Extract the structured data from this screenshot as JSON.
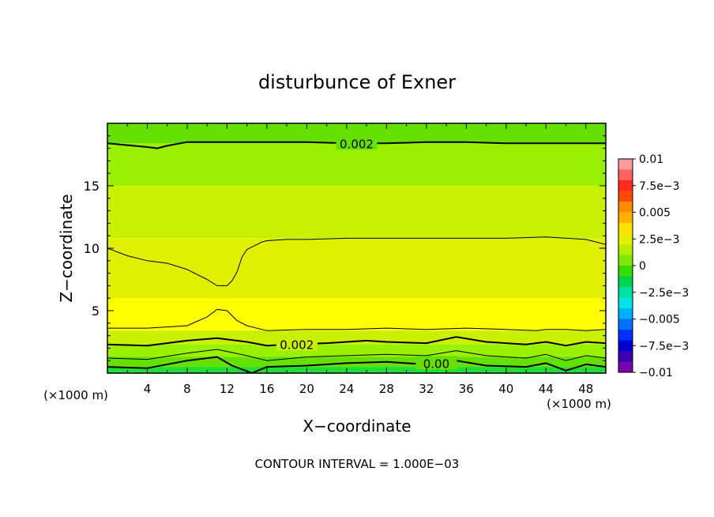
{
  "chart_data": {
    "type": "heatmap",
    "title": "disturbunce of Exner",
    "xlabel": "X−coordinate",
    "ylabel": "Z−coordinate",
    "x_unit": "(×1000 m)",
    "x_unit_right": "(×1000 m)",
    "footer": "CONTOUR INTERVAL = 1.000E−03",
    "xlim": [
      0,
      50
    ],
    "ylim": [
      0,
      20
    ],
    "x_ticks": [
      4,
      8,
      12,
      16,
      20,
      24,
      28,
      32,
      36,
      40,
      44,
      48
    ],
    "x_tick_labels": [
      "4",
      "8",
      "12",
      "16",
      "20",
      "24",
      "28",
      "32",
      "36",
      "40",
      "44",
      "48"
    ],
    "y_ticks": [
      5,
      10,
      15
    ],
    "y_tick_labels": [
      "5",
      "10",
      "15"
    ],
    "colorbar": {
      "range": [
        -0.01,
        0.01
      ],
      "tick_values": [
        0.01,
        0.0075,
        0.005,
        0.0025,
        0,
        -0.0025,
        -0.005,
        -0.0075,
        -0.01
      ],
      "tick_labels": [
        "0.01",
        "7.5e−3",
        "0.005",
        "2.5e−3",
        "0",
        "−2.5e−3",
        "−0.005",
        "−7.5e−3",
        "−0.01"
      ],
      "colors": [
        "#ff9a9a",
        "#ff6060",
        "#ff2b1a",
        "#ff4a00",
        "#ff8c00",
        "#ffb000",
        "#ffe000",
        "#e6f000",
        "#b6f000",
        "#7fe800",
        "#33dd00",
        "#00d44a",
        "#00e0a0",
        "#00e5e5",
        "#00b0ff",
        "#0070ff",
        "#0030ff",
        "#0000d0",
        "#3a00b0",
        "#7a00b0"
      ]
    },
    "bands": [
      {
        "z_from": 18.4,
        "z_to": 20.0,
        "color": "#66e000"
      },
      {
        "z_from": 15.0,
        "z_to": 18.4,
        "color": "#99f000"
      },
      {
        "z_from": 10.8,
        "z_to": 15.0,
        "color": "#c8f000"
      },
      {
        "z_from": 6.0,
        "z_to": 10.8,
        "color": "#e0f000"
      },
      {
        "z_from": 3.4,
        "z_to": 6.0,
        "color": "#ffff00"
      },
      {
        "z_from": 2.3,
        "z_to": 3.4,
        "color": "#c8f000"
      },
      {
        "z_from": 1.3,
        "z_to": 2.3,
        "color": "#99f000"
      },
      {
        "z_from": 0.5,
        "z_to": 1.3,
        "color": "#66e000"
      },
      {
        "z_from": 0.0,
        "z_to": 0.5,
        "color": "#22dd33"
      }
    ],
    "contours": [
      {
        "level": 0.002,
        "label": "0.002",
        "label_x": 25,
        "x": [
          0,
          4,
          5,
          6,
          8,
          12,
          16,
          20,
          24,
          28,
          32,
          36,
          40,
          44,
          48,
          50
        ],
        "z": [
          18.4,
          18.1,
          18.0,
          18.2,
          18.5,
          18.5,
          18.5,
          18.5,
          18.4,
          18.4,
          18.5,
          18.5,
          18.4,
          18.4,
          18.4,
          18.4
        ]
      },
      {
        "level": 0.003,
        "label": "",
        "x": [
          0,
          2,
          4,
          6,
          8,
          10,
          11,
          12,
          12.5,
          13,
          13.5,
          14,
          15,
          15.5,
          16,
          18,
          20,
          24,
          28,
          32,
          36,
          40,
          44,
          48,
          50
        ],
        "z": [
          10.0,
          9.4,
          9.0,
          8.8,
          8.3,
          7.5,
          7.0,
          7.0,
          7.4,
          8.1,
          9.3,
          9.9,
          10.3,
          10.5,
          10.6,
          10.7,
          10.7,
          10.8,
          10.8,
          10.8,
          10.8,
          10.8,
          10.9,
          10.7,
          10.3
        ]
      },
      {
        "level": 0.003,
        "label": "",
        "x": [
          0,
          4,
          8,
          10,
          11,
          12,
          13,
          14,
          16,
          20,
          24,
          28,
          32,
          36,
          40,
          43,
          44,
          46,
          48,
          50
        ],
        "z": [
          3.6,
          3.6,
          3.8,
          4.5,
          5.1,
          5.0,
          4.2,
          3.8,
          3.4,
          3.5,
          3.5,
          3.6,
          3.5,
          3.6,
          3.5,
          3.4,
          3.5,
          3.5,
          3.4,
          3.5
        ]
      },
      {
        "level": 0.002,
        "label": "0.002",
        "label_x": 19,
        "x": [
          0,
          4,
          8,
          11,
          14,
          16,
          18,
          22,
          26,
          28,
          32,
          35,
          38,
          42,
          44,
          46,
          48,
          50
        ],
        "z": [
          2.3,
          2.2,
          2.6,
          2.8,
          2.5,
          2.2,
          2.3,
          2.4,
          2.6,
          2.5,
          2.4,
          2.9,
          2.5,
          2.3,
          2.5,
          2.2,
          2.5,
          2.4
        ]
      },
      {
        "level": 0.001,
        "label": "",
        "x": [
          0,
          4,
          8,
          11,
          14,
          16,
          20,
          24,
          28,
          32,
          35,
          38,
          42,
          44,
          46,
          48,
          50
        ],
        "z": [
          1.2,
          1.1,
          1.6,
          1.9,
          1.4,
          1.0,
          1.3,
          1.4,
          1.5,
          1.4,
          1.8,
          1.4,
          1.2,
          1.5,
          1.0,
          1.4,
          1.2
        ]
      },
      {
        "level": 0.0,
        "label": "0.00",
        "label_x": 33,
        "x": [
          0,
          4,
          8,
          11,
          12.5,
          14.5,
          16,
          20,
          24,
          28,
          32,
          35,
          38,
          42,
          44,
          46,
          48,
          50
        ],
        "z": [
          0.5,
          0.4,
          1.0,
          1.3,
          0.6,
          0.0,
          0.5,
          0.6,
          0.8,
          0.9,
          0.7,
          1.0,
          0.6,
          0.5,
          0.8,
          0.2,
          0.7,
          0.5
        ]
      }
    ],
    "grid": false
  }
}
